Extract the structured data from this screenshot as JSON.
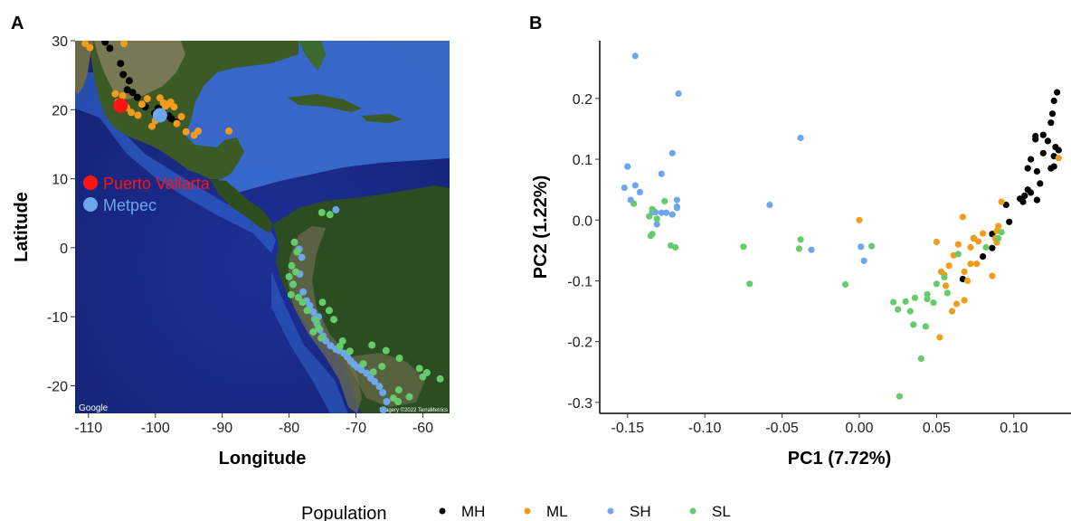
{
  "panels": {
    "a": "A",
    "b": "B"
  },
  "colors": {
    "MH": "#000000",
    "ML": "#f39c1b",
    "SH": "#6ea6ec",
    "SL": "#65cc6b",
    "ocean": "#1a2a8a",
    "shallow": "#3d73d6",
    "land": "#2c4d22",
    "highlight_pv": "#ff1414",
    "highlight_metpec": "#6ea6ec"
  },
  "legend": {
    "title": "Population",
    "items": [
      {
        "key": "MH",
        "label": "MH"
      },
      {
        "key": "ML",
        "label": "ML"
      },
      {
        "key": "SH",
        "label": "SH"
      },
      {
        "key": "SL",
        "label": "SL"
      }
    ]
  },
  "chart_data": [
    {
      "id": "map",
      "type": "scatter",
      "title": "",
      "xlabel": "Longitude",
      "ylabel": "Latitude",
      "xlim": [
        -112,
        -56
      ],
      "ylim": [
        -24,
        30
      ],
      "xticks": [
        -110,
        -100,
        -90,
        -80,
        -70,
        -60
      ],
      "yticks": [
        -20,
        -10,
        0,
        10,
        20,
        30
      ],
      "grid": false,
      "background": "satellite map",
      "credits": {
        "left": "Google",
        "right": "Imagery ©2022 TerraMetrics"
      },
      "highlights": [
        {
          "name": "Puerto Vallarta",
          "x": -105.2,
          "y": 20.6,
          "color": "#ff1414"
        },
        {
          "name": "Metpec",
          "x": -99.3,
          "y": 19.2,
          "color": "#6ea6ec"
        }
      ],
      "series": [
        {
          "name": "MH",
          "points": [
            [
              -107.5,
              29.8
            ],
            [
              -106.8,
              28.9
            ],
            [
              -105.2,
              26.7
            ],
            [
              -104.8,
              25.1
            ],
            [
              -103.9,
              24.2
            ],
            [
              -104.2,
              22.9
            ],
            [
              -103.4,
              22.5
            ],
            [
              -102.7,
              21.8
            ],
            [
              -101.5,
              20.4
            ],
            [
              -100.1,
              19.5
            ],
            [
              -99.6,
              20.2
            ],
            [
              -98.9,
              19.8
            ],
            [
              -98.0,
              19.1
            ],
            [
              -97.6,
              18.7
            ],
            [
              -96.9,
              18.2
            ]
          ]
        },
        {
          "name": "ML",
          "points": [
            [
              -110.5,
              29.6
            ],
            [
              -109.8,
              29.0
            ],
            [
              -104.7,
              29.6
            ],
            [
              -106.0,
              22.3
            ],
            [
              -104.9,
              22.0
            ],
            [
              -105.6,
              21.1
            ],
            [
              -104.3,
              20.3
            ],
            [
              -103.6,
              19.6
            ],
            [
              -102.6,
              19.2
            ],
            [
              -102.0,
              20.8
            ],
            [
              -101.2,
              21.6
            ],
            [
              -100.5,
              17.6
            ],
            [
              -100.0,
              18.4
            ],
            [
              -99.3,
              21.7
            ],
            [
              -98.8,
              21.0
            ],
            [
              -98.5,
              20.5
            ],
            [
              -98.1,
              20.8
            ],
            [
              -97.7,
              21.1
            ],
            [
              -97.2,
              20.4
            ],
            [
              -96.8,
              18.0
            ],
            [
              -96.1,
              19.0
            ],
            [
              -95.4,
              16.8
            ],
            [
              -94.2,
              16.3
            ],
            [
              -93.6,
              16.9
            ],
            [
              -89.0,
              16.9
            ]
          ]
        },
        {
          "name": "SH",
          "points": [
            [
              -73.0,
              5.5
            ],
            [
              -78.5,
              -0.2
            ],
            [
              -78.1,
              -1.4
            ],
            [
              -78.4,
              -3.8
            ],
            [
              -77.9,
              -6.4
            ],
            [
              -77.4,
              -7.7
            ],
            [
              -76.9,
              -8.4
            ],
            [
              -76.4,
              -9.3
            ],
            [
              -76.2,
              -10.3
            ],
            [
              -75.8,
              -11.0
            ],
            [
              -75.4,
              -11.9
            ],
            [
              -74.9,
              -12.8
            ],
            [
              -74.5,
              -13.5
            ],
            [
              -73.8,
              -14.2
            ],
            [
              -73.0,
              -14.7
            ],
            [
              -72.5,
              -14.9
            ],
            [
              -71.8,
              -15.3
            ],
            [
              -71.3,
              -15.8
            ],
            [
              -70.8,
              -16.4
            ],
            [
              -70.3,
              -16.9
            ],
            [
              -69.8,
              -17.3
            ],
            [
              -69.2,
              -17.7
            ],
            [
              -68.4,
              -18.2
            ],
            [
              -67.8,
              -18.9
            ],
            [
              -67.2,
              -19.4
            ],
            [
              -66.5,
              -20.1
            ],
            [
              -66.0,
              -21.0
            ],
            [
              -65.4,
              -22.3
            ],
            [
              -65.9,
              -23.5
            ],
            [
              -75.6,
              -10.0
            ]
          ]
        },
        {
          "name": "SL",
          "points": [
            [
              -75.1,
              5.1
            ],
            [
              -73.9,
              4.8
            ],
            [
              -79.2,
              0.8
            ],
            [
              -78.8,
              -0.6
            ],
            [
              -79.6,
              -2.6
            ],
            [
              -79.0,
              -3.5
            ],
            [
              -80.0,
              -4.2
            ],
            [
              -79.4,
              -5.3
            ],
            [
              -79.7,
              -6.8
            ],
            [
              -78.6,
              -7.2
            ],
            [
              -78.0,
              -7.9
            ],
            [
              -77.3,
              -9.1
            ],
            [
              -76.0,
              -10.5
            ],
            [
              -75.6,
              -11.6
            ],
            [
              -74.0,
              -9.1
            ],
            [
              -73.3,
              -10.4
            ],
            [
              -76.4,
              -12.2
            ],
            [
              -75.2,
              -13.1
            ],
            [
              -72.0,
              -13.5
            ],
            [
              -72.4,
              -14.3
            ],
            [
              -70.9,
              -15.0
            ],
            [
              -67.6,
              -14.1
            ],
            [
              -65.5,
              -14.9
            ],
            [
              -63.5,
              -16.0
            ],
            [
              -68.9,
              -16.8
            ],
            [
              -67.4,
              -18.0
            ],
            [
              -66.1,
              -17.2
            ],
            [
              -60.5,
              -17.5
            ],
            [
              -59.4,
              -18.1
            ],
            [
              -60.0,
              -18.7
            ],
            [
              -57.4,
              -19.0
            ],
            [
              -63.6,
              -20.6
            ],
            [
              -64.4,
              -21.8
            ],
            [
              -63.7,
              -22.3
            ],
            [
              -62.0,
              -21.6
            ],
            [
              -75.0,
              -7.9
            ]
          ]
        }
      ]
    },
    {
      "id": "pca",
      "type": "scatter",
      "title": "",
      "xlabel": "PC1 (7.72%)",
      "ylabel": "PC2 (1.22%)",
      "xlim": [
        -0.168,
        0.137
      ],
      "ylim": [
        -0.318,
        0.295
      ],
      "xticks": [
        -0.15,
        -0.1,
        -0.05,
        0.0,
        0.05,
        0.1
      ],
      "yticks": [
        -0.3,
        -0.2,
        -0.1,
        0.0,
        0.1,
        0.2
      ],
      "xticklabels": [
        "-0.15",
        "-0.10",
        "-0.05",
        "0.00",
        "0.05",
        "0.10"
      ],
      "yticklabels": [
        "-0.3",
        "-0.2",
        "-0.1",
        "0.0",
        "0.1",
        "0.2"
      ],
      "grid": false,
      "series": [
        {
          "name": "MH",
          "points": [
            [
              0.128,
              0.21
            ],
            [
              0.126,
              0.196
            ],
            [
              0.125,
              0.175
            ],
            [
              0.124,
              0.16
            ],
            [
              0.114,
              0.138
            ],
            [
              0.114,
              0.133
            ],
            [
              0.119,
              0.14
            ],
            [
              0.122,
              0.13
            ],
            [
              0.127,
              0.12
            ],
            [
              0.119,
              0.11
            ],
            [
              0.126,
              0.105
            ],
            [
              0.111,
              0.1
            ],
            [
              0.129,
              0.115
            ],
            [
              0.124,
              0.085
            ],
            [
              0.126,
              0.088
            ],
            [
              0.115,
              0.08
            ],
            [
              0.109,
              0.085
            ],
            [
              0.117,
              0.06
            ],
            [
              0.109,
              0.05
            ],
            [
              0.111,
              0.045
            ],
            [
              0.107,
              0.04
            ],
            [
              0.104,
              0.035
            ],
            [
              0.106,
              0.03
            ],
            [
              0.115,
              0.033
            ],
            [
              0.095,
              0.025
            ],
            [
              0.097,
              -0.003
            ],
            [
              0.086,
              -0.023
            ],
            [
              0.074,
              -0.03
            ],
            [
              0.086,
              -0.046
            ],
            [
              0.08,
              -0.06
            ],
            [
              0.067,
              -0.097
            ]
          ]
        },
        {
          "name": "ML",
          "points": [
            [
              0.129,
              0.102
            ],
            [
              0.092,
              0.03
            ],
            [
              0.0,
              0.0
            ],
            [
              0.067,
              0.005
            ],
            [
              0.09,
              -0.01
            ],
            [
              0.089,
              -0.018
            ],
            [
              0.088,
              -0.03
            ],
            [
              0.08,
              -0.022
            ],
            [
              0.077,
              -0.035
            ],
            [
              0.074,
              -0.03
            ],
            [
              0.064,
              -0.04
            ],
            [
              0.05,
              -0.036
            ],
            [
              0.089,
              -0.037
            ],
            [
              0.072,
              -0.045
            ],
            [
              0.061,
              -0.058
            ],
            [
              0.058,
              -0.075
            ],
            [
              0.053,
              -0.085
            ],
            [
              0.055,
              -0.09
            ],
            [
              0.072,
              -0.072
            ],
            [
              0.076,
              -0.072
            ],
            [
              0.068,
              -0.085
            ],
            [
              0.086,
              -0.092
            ],
            [
              0.056,
              -0.108
            ],
            [
              0.063,
              -0.138
            ],
            [
              0.06,
              -0.15
            ],
            [
              0.068,
              -0.132
            ],
            [
              0.052,
              -0.193
            ],
            [
              0.07,
              -0.1
            ]
          ]
        },
        {
          "name": "SH",
          "points": [
            [
              -0.145,
              0.27
            ],
            [
              -0.117,
              0.208
            ],
            [
              -0.038,
              0.135
            ],
            [
              -0.121,
              0.11
            ],
            [
              -0.15,
              0.088
            ],
            [
              -0.128,
              0.076
            ],
            [
              -0.145,
              0.057
            ],
            [
              -0.152,
              0.053
            ],
            [
              -0.142,
              0.046
            ],
            [
              -0.148,
              0.033
            ],
            [
              -0.118,
              0.033
            ],
            [
              -0.118,
              0.022
            ],
            [
              -0.118,
              0.02
            ],
            [
              -0.058,
              0.025
            ],
            [
              -0.132,
              0.013
            ],
            [
              -0.128,
              0.012
            ],
            [
              -0.125,
              0.012
            ],
            [
              -0.121,
              0.009
            ],
            [
              -0.134,
              0.013
            ],
            [
              -0.131,
              -0.007
            ],
            [
              -0.031,
              -0.049
            ],
            [
              0.001,
              -0.044
            ],
            [
              0.003,
              -0.067
            ]
          ]
        },
        {
          "name": "SL",
          "points": [
            [
              -0.146,
              0.027
            ],
            [
              -0.126,
              0.031
            ],
            [
              -0.134,
              0.018
            ],
            [
              -0.136,
              0.006
            ],
            [
              -0.131,
              0.002
            ],
            [
              -0.134,
              -0.023
            ],
            [
              -0.135,
              -0.026
            ],
            [
              -0.122,
              -0.042
            ],
            [
              -0.119,
              -0.045
            ],
            [
              -0.075,
              -0.044
            ],
            [
              -0.071,
              -0.105
            ],
            [
              -0.038,
              -0.032
            ],
            [
              -0.039,
              -0.047
            ],
            [
              -0.009,
              -0.106
            ],
            [
              0.008,
              -0.043
            ],
            [
              0.092,
              -0.02
            ],
            [
              0.09,
              -0.03
            ],
            [
              0.082,
              -0.045
            ],
            [
              0.064,
              -0.056
            ],
            [
              0.055,
              -0.094
            ],
            [
              0.05,
              -0.105
            ],
            [
              0.044,
              -0.13
            ],
            [
              0.036,
              -0.128
            ],
            [
              0.022,
              -0.135
            ],
            [
              0.044,
              -0.122
            ],
            [
              0.057,
              -0.12
            ],
            [
              0.03,
              -0.134
            ],
            [
              0.025,
              -0.147
            ],
            [
              0.033,
              -0.15
            ],
            [
              0.048,
              -0.136
            ],
            [
              0.035,
              -0.172
            ],
            [
              0.043,
              -0.175
            ],
            [
              0.04,
              -0.228
            ],
            [
              0.026,
              -0.29
            ]
          ]
        }
      ]
    }
  ]
}
